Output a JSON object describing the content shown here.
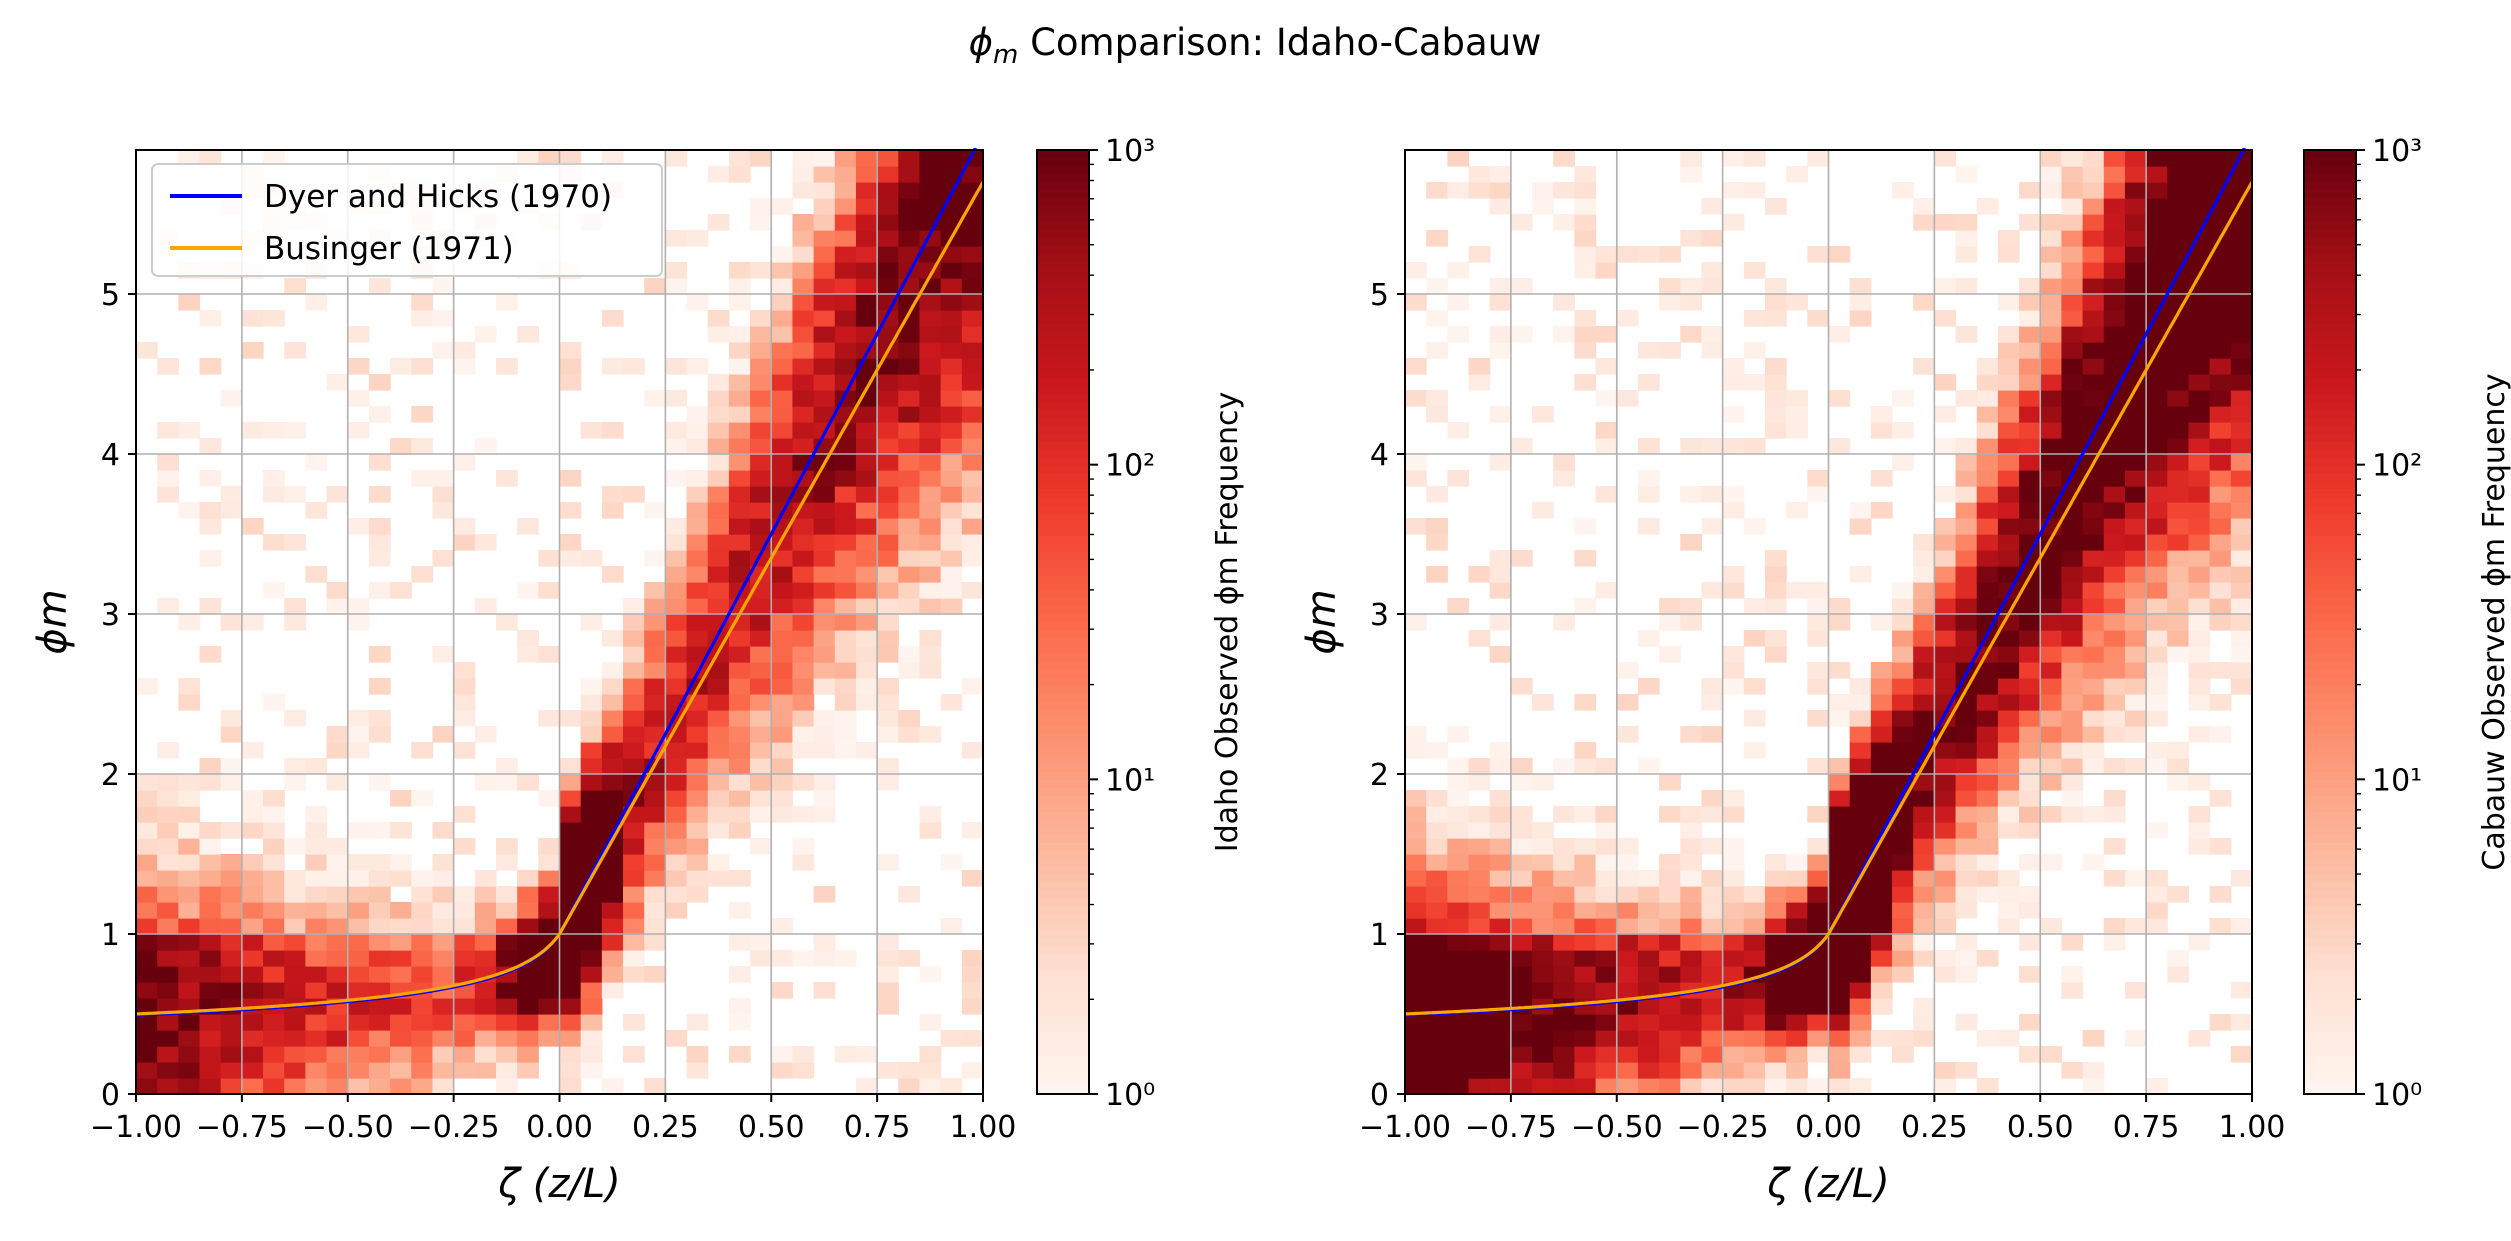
{
  "suptitle": {
    "prefix": "ϕ",
    "sub": "m",
    "text": " Comparison: Idaho-Cabauw"
  },
  "chart_data": [
    {
      "type": "heatmap",
      "panel": "idaho",
      "xlabel": "ζ (z/L)",
      "ylabel": "ϕm",
      "xlim": [
        -1.0,
        1.0
      ],
      "ylim": [
        0,
        5.9
      ],
      "xticks": [
        "−1.00",
        "−0.75",
        "−0.50",
        "−0.25",
        "0.00",
        "0.25",
        "0.50",
        "0.75",
        "1.00"
      ],
      "yticks": [
        "0",
        "1",
        "2",
        "3",
        "4",
        "5"
      ],
      "grid": true,
      "colorbar": {
        "label": "Idaho Observed ϕm Frequency",
        "scale": "log",
        "range": [
          1,
          1000
        ],
        "ticks": [
          "10⁰",
          "10¹",
          "10²",
          "10³"
        ]
      },
      "legend": {
        "placement": "top-left",
        "entries": [
          "Dyer and Hicks (1970)",
          "Businger (1971)"
        ]
      },
      "series": [
        {
          "name": "Dyer and Hicks (1970)",
          "color": "#0000ff",
          "formula": "zeta<0: (1-16*zeta)^-0.25 ; zeta>=0: 1+5*zeta"
        },
        {
          "name": "Businger (1971)",
          "color": "#ffa500",
          "formula": "zeta<0: (1-15*zeta)^-0.25 ; zeta>=0: 1+4.7*zeta"
        }
      ]
    },
    {
      "type": "heatmap",
      "panel": "cabauw",
      "xlabel": "ζ (z/L)",
      "ylabel": "ϕm",
      "xlim": [
        -1.0,
        1.0
      ],
      "ylim": [
        0,
        5.9
      ],
      "xticks": [
        "−1.00",
        "−0.75",
        "−0.50",
        "−0.25",
        "0.00",
        "0.25",
        "0.50",
        "0.75",
        "1.00"
      ],
      "yticks": [
        "0",
        "1",
        "2",
        "3",
        "4",
        "5"
      ],
      "grid": true,
      "colorbar": {
        "label": "Cabauw Observed ϕm Frequency",
        "scale": "log",
        "range": [
          1,
          1000
        ],
        "ticks": [
          "10⁰",
          "10¹",
          "10²",
          "10³"
        ]
      },
      "series": [
        {
          "name": "Dyer and Hicks (1970)",
          "color": "#0000ff",
          "formula": "zeta<0: (1-16*zeta)^-0.25 ; zeta>=0: 1+5*zeta"
        },
        {
          "name": "Businger (1971)",
          "color": "#ffa500",
          "formula": "zeta<0: (1-15*zeta)^-0.25 ; zeta>=0: 1+4.7*zeta"
        }
      ]
    }
  ]
}
